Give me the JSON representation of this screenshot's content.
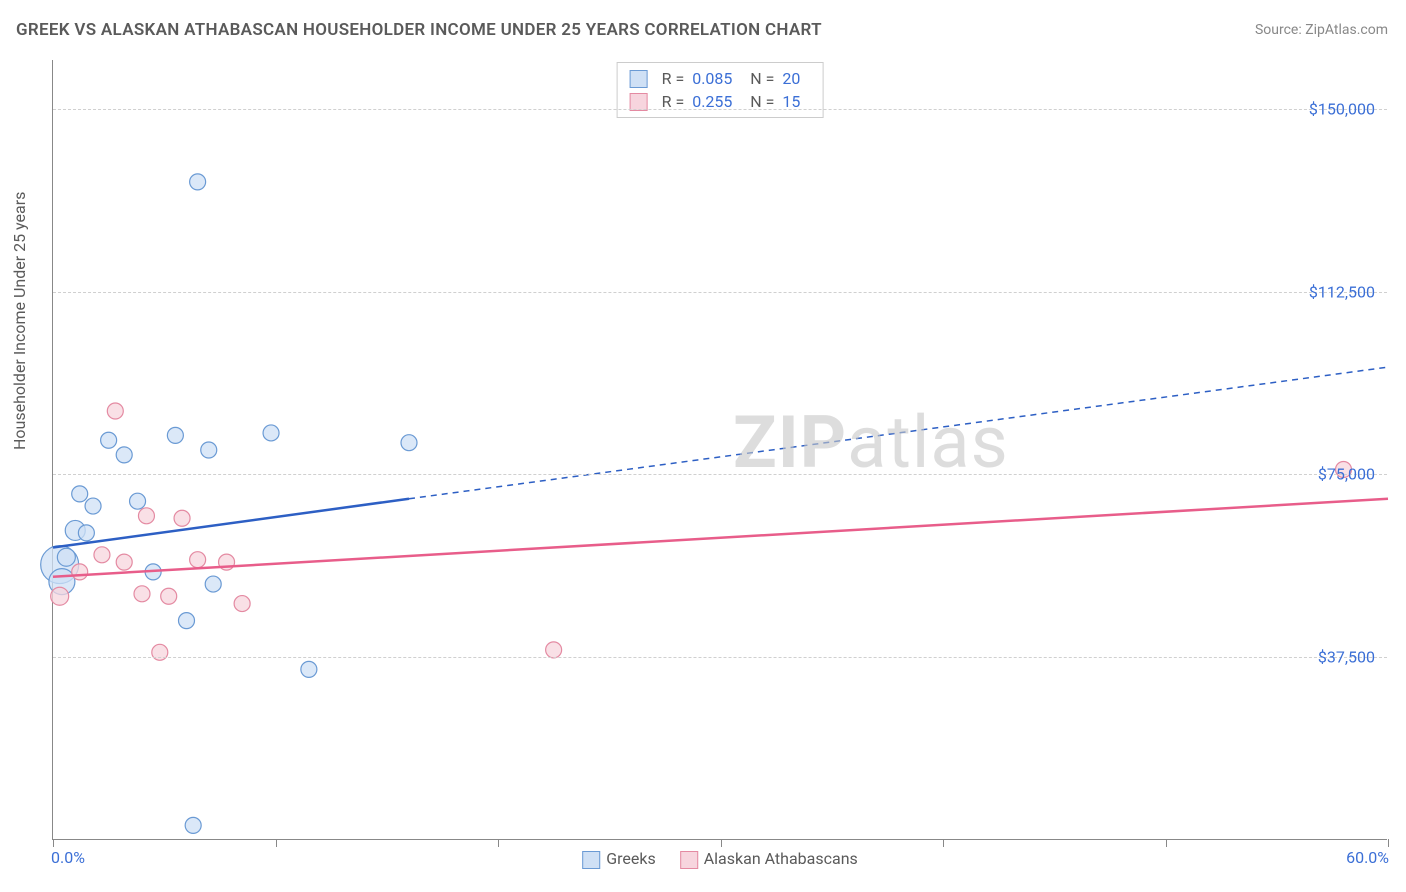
{
  "title": "GREEK VS ALASKAN ATHABASCAN HOUSEHOLDER INCOME UNDER 25 YEARS CORRELATION CHART",
  "source": "Source: ZipAtlas.com",
  "y_axis_label": "Householder Income Under 25 years",
  "watermark_bold": "ZIP",
  "watermark_rest": "atlas",
  "chart": {
    "type": "scatter",
    "xlim": [
      0,
      60
    ],
    "ylim": [
      0,
      160000
    ],
    "x_tick_positions": [
      0,
      10,
      20,
      30,
      40,
      50,
      60
    ],
    "x_range_labels": {
      "min": "0.0%",
      "max": "60.0%"
    },
    "y_ticks": [
      {
        "value": 37500,
        "label": "$37,500"
      },
      {
        "value": 75000,
        "label": "$75,000"
      },
      {
        "value": 112500,
        "label": "$112,500"
      },
      {
        "value": 150000,
        "label": "$150,000"
      }
    ],
    "background_color": "#ffffff",
    "grid_color": "#d0d0d0",
    "series": [
      {
        "name": "Greeks",
        "marker_fill": "#cfe0f5",
        "marker_stroke": "#6a9ad4",
        "line_color": "#2d5fc4",
        "line_width": 2.5,
        "R": "0.085",
        "N": "20",
        "trend": {
          "solid_from": [
            0,
            60000
          ],
          "solid_to": [
            16,
            70000
          ],
          "dash_to": [
            60,
            97000
          ]
        },
        "points": [
          {
            "x": 0.3,
            "y": 56500,
            "r": 19
          },
          {
            "x": 0.4,
            "y": 53000,
            "r": 13
          },
          {
            "x": 0.6,
            "y": 58000,
            "r": 9
          },
          {
            "x": 1.0,
            "y": 63500,
            "r": 10
          },
          {
            "x": 1.2,
            "y": 71000,
            "r": 8
          },
          {
            "x": 1.5,
            "y": 63000,
            "r": 8
          },
          {
            "x": 1.8,
            "y": 68500,
            "r": 8
          },
          {
            "x": 2.5,
            "y": 82000,
            "r": 8
          },
          {
            "x": 3.2,
            "y": 79000,
            "r": 8
          },
          {
            "x": 3.8,
            "y": 69500,
            "r": 8
          },
          {
            "x": 4.5,
            "y": 55000,
            "r": 8
          },
          {
            "x": 5.5,
            "y": 83000,
            "r": 8
          },
          {
            "x": 6.0,
            "y": 45000,
            "r": 8
          },
          {
            "x": 6.5,
            "y": 135000,
            "r": 8
          },
          {
            "x": 7.0,
            "y": 80000,
            "r": 8
          },
          {
            "x": 7.2,
            "y": 52500,
            "r": 8
          },
          {
            "x": 9.8,
            "y": 83500,
            "r": 8
          },
          {
            "x": 11.5,
            "y": 35000,
            "r": 8
          },
          {
            "x": 16.0,
            "y": 81500,
            "r": 8
          },
          {
            "x": 6.3,
            "y": 3000,
            "r": 8
          }
        ]
      },
      {
        "name": "Alaskan Athabascans",
        "marker_fill": "#f7d5de",
        "marker_stroke": "#e48aa2",
        "line_color": "#e85d8a",
        "line_width": 2.5,
        "R": "0.255",
        "N": "15",
        "trend": {
          "solid_from": [
            0,
            54000
          ],
          "solid_to": [
            60,
            70000
          ],
          "dash_to": null
        },
        "points": [
          {
            "x": 0.3,
            "y": 50000,
            "r": 9
          },
          {
            "x": 1.2,
            "y": 55000,
            "r": 8
          },
          {
            "x": 2.2,
            "y": 58500,
            "r": 8
          },
          {
            "x": 2.8,
            "y": 88000,
            "r": 8
          },
          {
            "x": 3.2,
            "y": 57000,
            "r": 8
          },
          {
            "x": 4.0,
            "y": 50500,
            "r": 8
          },
          {
            "x": 4.2,
            "y": 66500,
            "r": 8
          },
          {
            "x": 4.8,
            "y": 38500,
            "r": 8
          },
          {
            "x": 5.2,
            "y": 50000,
            "r": 8
          },
          {
            "x": 5.8,
            "y": 66000,
            "r": 8
          },
          {
            "x": 6.5,
            "y": 57500,
            "r": 8
          },
          {
            "x": 7.8,
            "y": 57000,
            "r": 8
          },
          {
            "x": 8.5,
            "y": 48500,
            "r": 8
          },
          {
            "x": 22.5,
            "y": 39000,
            "r": 8
          },
          {
            "x": 58.0,
            "y": 76000,
            "r": 8
          }
        ]
      }
    ]
  },
  "bottom_legend": [
    {
      "label": "Greeks",
      "fill": "#cfe0f5",
      "stroke": "#6a9ad4"
    },
    {
      "label": "Alaskan Athabascans",
      "fill": "#f7d5de",
      "stroke": "#e48aa2"
    }
  ]
}
